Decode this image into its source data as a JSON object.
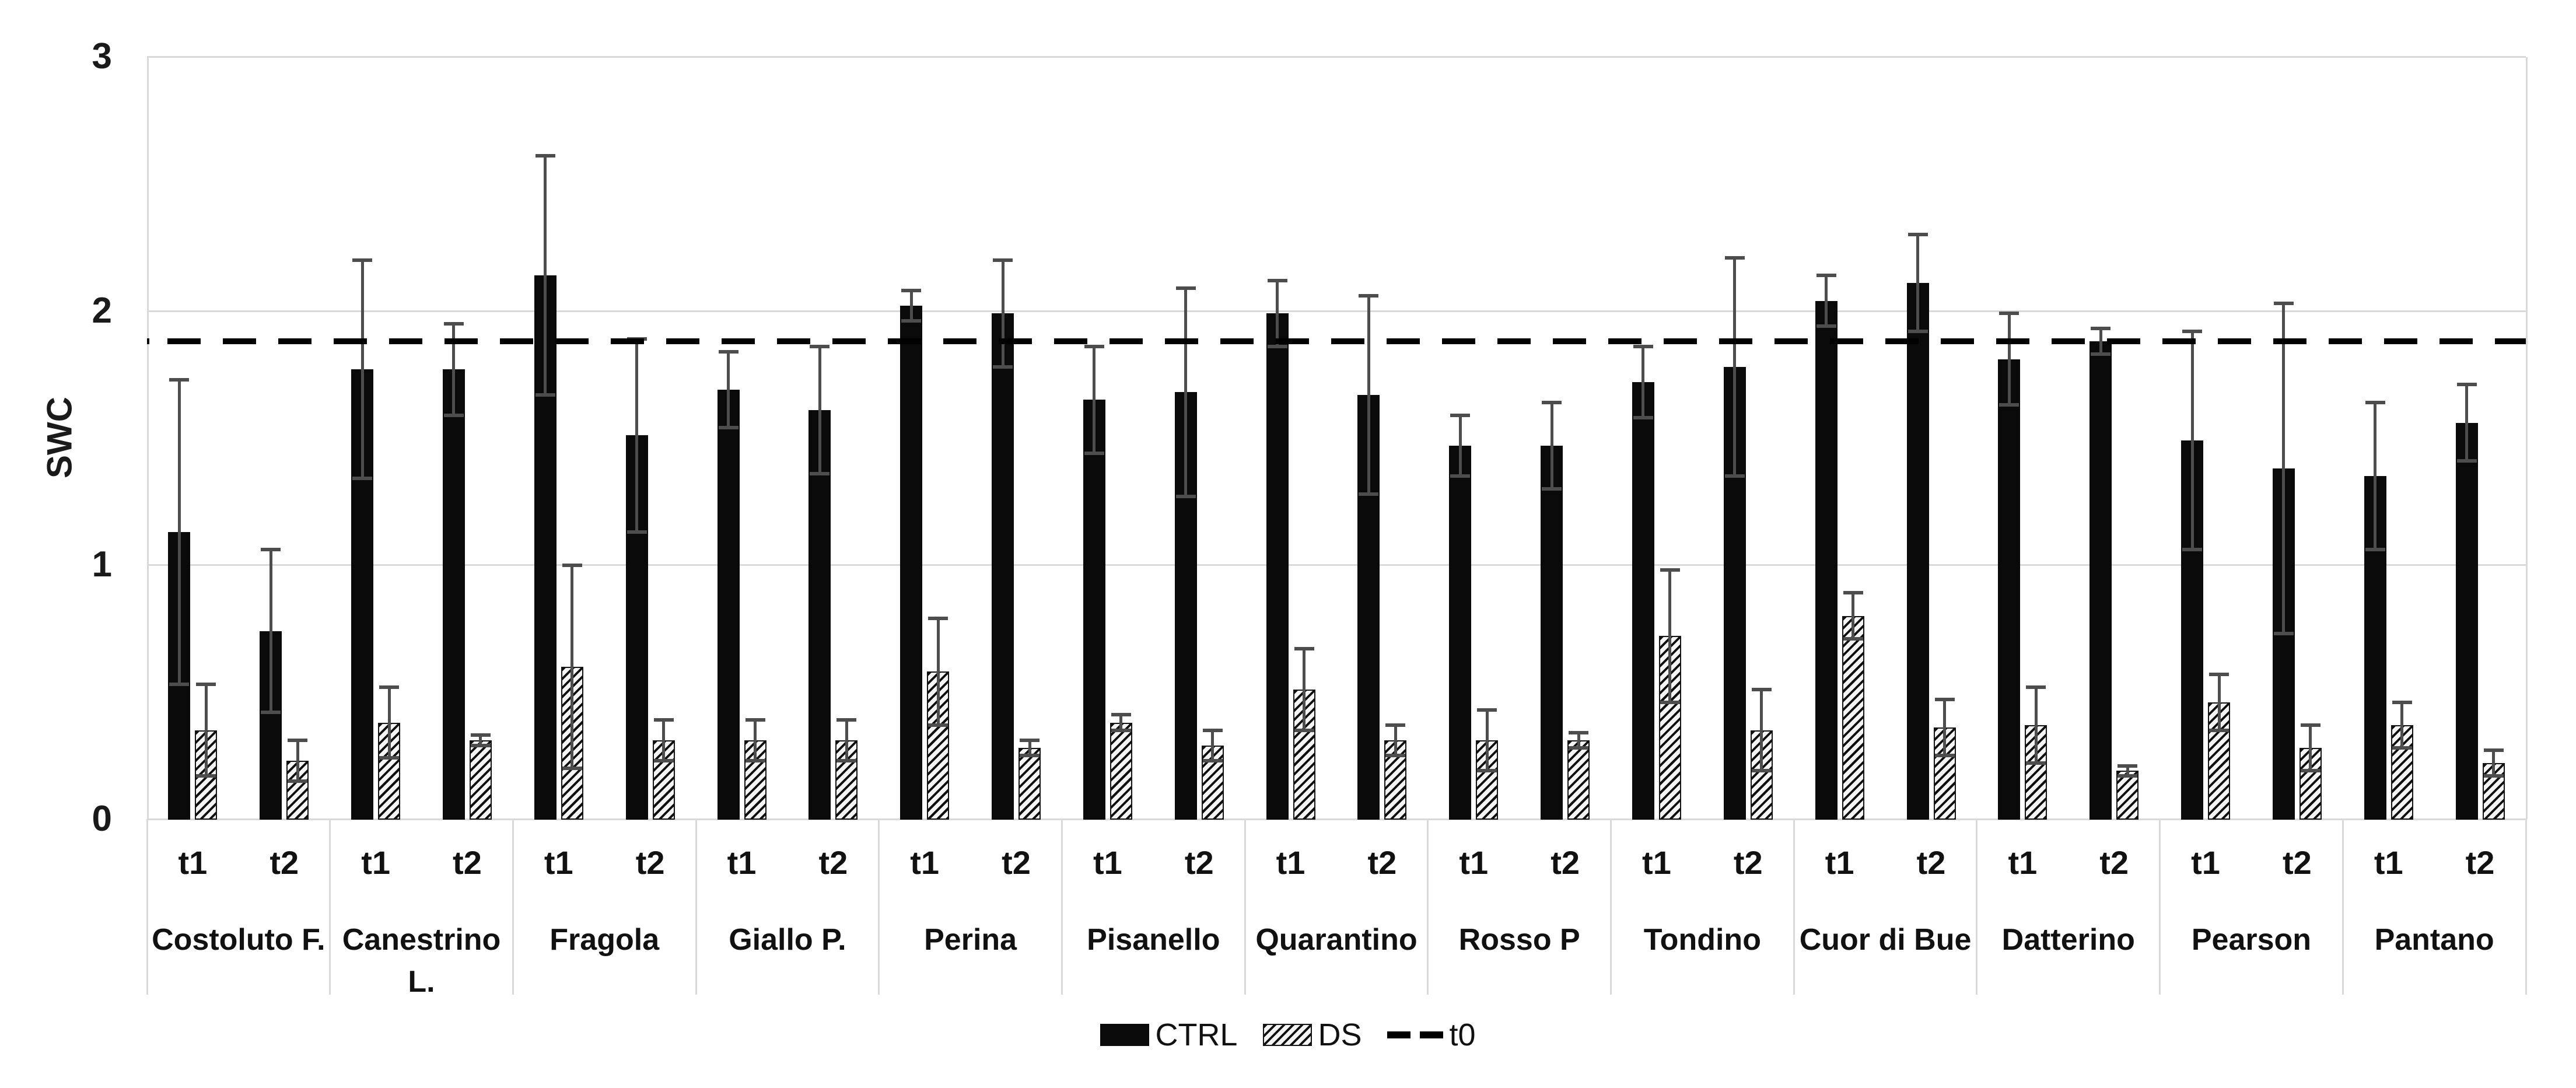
{
  "y_axis": {
    "title": "SWC",
    "ticks": [
      "3",
      "2",
      "1",
      "0"
    ]
  },
  "legend": {
    "ctrl": "CTRL",
    "ds": "DS",
    "t0": "t0"
  },
  "chart_data": {
    "type": "bar",
    "title": "",
    "xlabel": "",
    "ylabel": "SWC",
    "ylim": [
      0,
      3
    ],
    "yticks": [
      0,
      1,
      2,
      3
    ],
    "grid": "horizontal-light",
    "legend_position": "bottom-center",
    "bar_color_CTRL": "#0a0a0a",
    "bar_pattern_DS": "black diagonal hatch on white",
    "error_bar_color": "#4d4d4d",
    "reference_line": {
      "name": "t0",
      "value": 1.88,
      "style": "dashed",
      "color": "#000000"
    },
    "time_points": [
      "t1",
      "t2"
    ],
    "series": [
      "CTRL",
      "DS"
    ],
    "groups": [
      {
        "name": "Costoluto F.",
        "t1": {
          "CTRL": 1.13,
          "CTRL_err": 0.6,
          "DS": 0.35,
          "DS_err": 0.18
        },
        "t2": {
          "CTRL": 0.74,
          "CTRL_err": 0.32,
          "DS": 0.23,
          "DS_err": 0.08
        }
      },
      {
        "name": "Canestrino L.",
        "t1": {
          "CTRL": 1.77,
          "CTRL_err": 0.43,
          "DS": 0.38,
          "DS_err": 0.14
        },
        "t2": {
          "CTRL": 1.77,
          "CTRL_err": 0.18,
          "DS": 0.31,
          "DS_err": 0.02
        }
      },
      {
        "name": "Fragola",
        "t1": {
          "CTRL": 2.14,
          "CTRL_err": 0.47,
          "DS": 0.6,
          "DS_err": 0.4
        },
        "t2": {
          "CTRL": 1.51,
          "CTRL_err": 0.38,
          "DS": 0.31,
          "DS_err": 0.08
        }
      },
      {
        "name": "Giallo P.",
        "t1": {
          "CTRL": 1.69,
          "CTRL_err": 0.15,
          "DS": 0.31,
          "DS_err": 0.08
        },
        "t2": {
          "CTRL": 1.61,
          "CTRL_err": 0.25,
          "DS": 0.31,
          "DS_err": 0.08
        }
      },
      {
        "name": "Perina",
        "t1": {
          "CTRL": 2.02,
          "CTRL_err": 0.06,
          "DS": 0.58,
          "DS_err": 0.21
        },
        "t2": {
          "CTRL": 1.99,
          "CTRL_err": 0.21,
          "DS": 0.28,
          "DS_err": 0.03
        }
      },
      {
        "name": "Pisanello",
        "t1": {
          "CTRL": 1.65,
          "CTRL_err": 0.21,
          "DS": 0.38,
          "DS_err": 0.03
        },
        "t2": {
          "CTRL": 1.68,
          "CTRL_err": 0.41,
          "DS": 0.29,
          "DS_err": 0.06
        }
      },
      {
        "name": "Quarantino",
        "t1": {
          "CTRL": 1.99,
          "CTRL_err": 0.13,
          "DS": 0.51,
          "DS_err": 0.16
        },
        "t2": {
          "CTRL": 1.67,
          "CTRL_err": 0.39,
          "DS": 0.31,
          "DS_err": 0.06
        }
      },
      {
        "name": "Rosso P",
        "t1": {
          "CTRL": 1.47,
          "CTRL_err": 0.12,
          "DS": 0.31,
          "DS_err": 0.12
        },
        "t2": {
          "CTRL": 1.47,
          "CTRL_err": 0.17,
          "DS": 0.31,
          "DS_err": 0.03
        }
      },
      {
        "name": "Tondino",
        "t1": {
          "CTRL": 1.72,
          "CTRL_err": 0.14,
          "DS": 0.72,
          "DS_err": 0.26
        },
        "t2": {
          "CTRL": 1.78,
          "CTRL_err": 0.43,
          "DS": 0.35,
          "DS_err": 0.16
        }
      },
      {
        "name": "Cuor di Bue",
        "t1": {
          "CTRL": 2.04,
          "CTRL_err": 0.1,
          "DS": 0.8,
          "DS_err": 0.09
        },
        "t2": {
          "CTRL": 2.11,
          "CTRL_err": 0.19,
          "DS": 0.36,
          "DS_err": 0.11
        }
      },
      {
        "name": "Datterino",
        "t1": {
          "CTRL": 1.81,
          "CTRL_err": 0.18,
          "DS": 0.37,
          "DS_err": 0.15
        },
        "t2": {
          "CTRL": 1.88,
          "CTRL_err": 0.05,
          "DS": 0.19,
          "DS_err": 0.02
        }
      },
      {
        "name": "Pearson",
        "t1": {
          "CTRL": 1.49,
          "CTRL_err": 0.43,
          "DS": 0.46,
          "DS_err": 0.11
        },
        "t2": {
          "CTRL": 1.38,
          "CTRL_err": 0.65,
          "DS": 0.28,
          "DS_err": 0.09
        }
      },
      {
        "name": "Pantano",
        "t1": {
          "CTRL": 1.35,
          "CTRL_err": 0.29,
          "DS": 0.37,
          "DS_err": 0.09
        },
        "t2": {
          "CTRL": 1.56,
          "CTRL_err": 0.15,
          "DS": 0.22,
          "DS_err": 0.05
        }
      }
    ]
  }
}
